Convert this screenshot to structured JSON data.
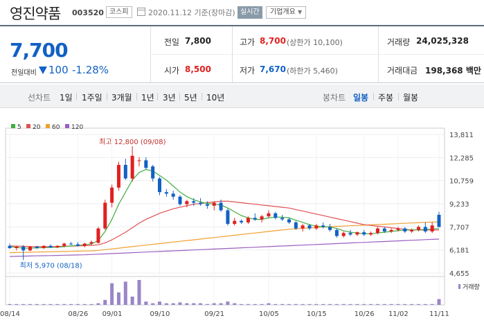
{
  "header": {
    "name": "영진약품",
    "code": "003520",
    "market": "코스피",
    "date": "2020.11.12 기준(장마감)",
    "realtime": "실시간",
    "overview": "기업개요"
  },
  "price": {
    "current": "7,700",
    "change_label": "전일대비",
    "change": "100",
    "change_pct": "-1.28%"
  },
  "stats": {
    "prev_close_label": "전일",
    "prev_close": "7,800",
    "high_label": "고가",
    "high": "8,700",
    "upper_limit": "(상한가 10,100)",
    "volume_label": "거래량",
    "volume": "24,025,328",
    "open_label": "시가",
    "open": "8,500",
    "low_label": "저가",
    "low": "7,670",
    "lower_limit": "(하한가 5,460)",
    "amount_label": "거래대금",
    "amount": "198,368 백만"
  },
  "tabs": {
    "line_chart": "선차트",
    "periods": [
      "1일",
      "1주일",
      "3개월",
      "1년",
      "3년",
      "5년",
      "10년"
    ],
    "candle_chart": "봉차트",
    "candle_periods": [
      "일봉",
      "주봉",
      "월봉"
    ],
    "active_candle": "일봉"
  },
  "colors": {
    "up": "#e02020",
    "down": "#1261c4",
    "ma5": "#3fae3f",
    "ma20": "#e05050",
    "ma60": "#f0a030",
    "ma120": "#9a5fc0",
    "volume": "#9a85c8"
  },
  "chart_data": {
    "type": "candlestick",
    "legend": [
      {
        "name": "5",
        "color": "#3fae3f"
      },
      {
        "name": "20",
        "color": "#e05050"
      },
      {
        "name": "60",
        "color": "#f0a030"
      },
      {
        "name": "120",
        "color": "#9a5fc0"
      }
    ],
    "y_ticks": [
      13811,
      12285,
      10759,
      9233,
      7707,
      6181,
      4655
    ],
    "y_tick_labels": [
      "13,811",
      "12,285",
      "10,759",
      "9,233",
      "7,707",
      "6,181",
      "4,655"
    ],
    "ylim": [
      4655,
      13811
    ],
    "x_tick_labels": [
      "08/14",
      "08/26",
      "09/01",
      "09/10",
      "09/21",
      "10/05",
      "10/15",
      "10/26",
      "11/02",
      "11/11"
    ],
    "max_annotation": "최고 12,800 (09/08)",
    "min_annotation": "최저 5,970 (08/18)",
    "volume_label": "거래량",
    "candles": [
      {
        "o": 6450,
        "h": 6600,
        "l": 6250,
        "c": 6300
      },
      {
        "o": 6300,
        "h": 6450,
        "l": 6150,
        "c": 6400
      },
      {
        "o": 6400,
        "h": 6500,
        "l": 5970,
        "c": 6150
      },
      {
        "o": 6150,
        "h": 6450,
        "l": 6100,
        "c": 6400
      },
      {
        "o": 6400,
        "h": 6450,
        "l": 6250,
        "c": 6300
      },
      {
        "o": 6300,
        "h": 6500,
        "l": 6250,
        "c": 6450
      },
      {
        "o": 6450,
        "h": 6550,
        "l": 6300,
        "c": 6350
      },
      {
        "o": 6350,
        "h": 6500,
        "l": 6300,
        "c": 6450
      },
      {
        "o": 6450,
        "h": 6650,
        "l": 6350,
        "c": 6600
      },
      {
        "o": 6600,
        "h": 6700,
        "l": 6500,
        "c": 6550
      },
      {
        "o": 6550,
        "h": 6700,
        "l": 6400,
        "c": 6450
      },
      {
        "o": 6450,
        "h": 6650,
        "l": 6350,
        "c": 6600
      },
      {
        "o": 6600,
        "h": 6800,
        "l": 6500,
        "c": 6700
      },
      {
        "o": 6650,
        "h": 7700,
        "l": 6600,
        "c": 7600
      },
      {
        "o": 7600,
        "h": 9500,
        "l": 7500,
        "c": 9300
      },
      {
        "o": 9300,
        "h": 10500,
        "l": 9000,
        "c": 10300
      },
      {
        "o": 10300,
        "h": 12000,
        "l": 10100,
        "c": 11800
      },
      {
        "o": 11800,
        "h": 12200,
        "l": 10800,
        "c": 10900
      },
      {
        "o": 10900,
        "h": 12800,
        "l": 10700,
        "c": 12400
      },
      {
        "o": 12100,
        "h": 12300,
        "l": 11700,
        "c": 12100
      },
      {
        "o": 12100,
        "h": 12300,
        "l": 11500,
        "c": 11600
      },
      {
        "o": 11700,
        "h": 11800,
        "l": 10700,
        "c": 10900
      },
      {
        "o": 10900,
        "h": 11000,
        "l": 9800,
        "c": 10000
      },
      {
        "o": 10000,
        "h": 10200,
        "l": 9700,
        "c": 9900
      },
      {
        "o": 9900,
        "h": 10100,
        "l": 9500,
        "c": 9700
      },
      {
        "o": 9700,
        "h": 9800,
        "l": 9100,
        "c": 9200
      },
      {
        "o": 9200,
        "h": 9500,
        "l": 9000,
        "c": 9400
      },
      {
        "o": 9400,
        "h": 9600,
        "l": 9100,
        "c": 9300
      },
      {
        "o": 9300,
        "h": 9600,
        "l": 9100,
        "c": 9200
      },
      {
        "o": 9200,
        "h": 9400,
        "l": 8900,
        "c": 9100
      },
      {
        "o": 9100,
        "h": 9400,
        "l": 8800,
        "c": 9300
      },
      {
        "o": 9300,
        "h": 9500,
        "l": 8700,
        "c": 8800
      },
      {
        "o": 8800,
        "h": 8900,
        "l": 7800,
        "c": 7900
      },
      {
        "o": 7900,
        "h": 8300,
        "l": 7800,
        "c": 8100
      },
      {
        "o": 8100,
        "h": 8200,
        "l": 7900,
        "c": 8000
      },
      {
        "o": 8000,
        "h": 8400,
        "l": 7900,
        "c": 8300
      },
      {
        "o": 8300,
        "h": 8600,
        "l": 8100,
        "c": 8200
      },
      {
        "o": 8200,
        "h": 8500,
        "l": 8000,
        "c": 8400
      },
      {
        "o": 8400,
        "h": 8800,
        "l": 8300,
        "c": 8600
      },
      {
        "o": 8600,
        "h": 8700,
        "l": 8200,
        "c": 8300
      },
      {
        "o": 8300,
        "h": 8500,
        "l": 8100,
        "c": 8200
      },
      {
        "o": 8200,
        "h": 8300,
        "l": 7900,
        "c": 8000
      },
      {
        "o": 8000,
        "h": 8100,
        "l": 7500,
        "c": 7600
      },
      {
        "o": 7600,
        "h": 7900,
        "l": 7400,
        "c": 7800
      },
      {
        "o": 7800,
        "h": 7900,
        "l": 7500,
        "c": 7600
      },
      {
        "o": 7600,
        "h": 7900,
        "l": 7500,
        "c": 7800
      },
      {
        "o": 7800,
        "h": 8000,
        "l": 7600,
        "c": 7700
      },
      {
        "o": 7700,
        "h": 7900,
        "l": 7400,
        "c": 7500
      },
      {
        "o": 7500,
        "h": 7600,
        "l": 7000,
        "c": 7100
      },
      {
        "o": 7100,
        "h": 7400,
        "l": 7000,
        "c": 7300
      },
      {
        "o": 7300,
        "h": 7500,
        "l": 7100,
        "c": 7200
      },
      {
        "o": 7200,
        "h": 7400,
        "l": 7100,
        "c": 7350
      },
      {
        "o": 7350,
        "h": 7500,
        "l": 7100,
        "c": 7200
      },
      {
        "o": 7200,
        "h": 7400,
        "l": 7100,
        "c": 7300
      },
      {
        "o": 7300,
        "h": 7700,
        "l": 7200,
        "c": 7600
      },
      {
        "o": 7600,
        "h": 7700,
        "l": 7300,
        "c": 7400
      },
      {
        "o": 7400,
        "h": 7600,
        "l": 7300,
        "c": 7500
      },
      {
        "o": 7500,
        "h": 7700,
        "l": 7400,
        "c": 7600
      },
      {
        "o": 7600,
        "h": 7700,
        "l": 7300,
        "c": 7400
      },
      {
        "o": 7400,
        "h": 7600,
        "l": 7300,
        "c": 7500
      },
      {
        "o": 7500,
        "h": 7800,
        "l": 7400,
        "c": 7700
      },
      {
        "o": 7700,
        "h": 8000,
        "l": 7300,
        "c": 7400
      },
      {
        "o": 7400,
        "h": 8000,
        "l": 7300,
        "c": 7800
      },
      {
        "o": 8500,
        "h": 8700,
        "l": 7670,
        "c": 7700
      }
    ],
    "ma5": [
      6400,
      6350,
      6300,
      6300,
      6320,
      6330,
      6350,
      6360,
      6400,
      6450,
      6480,
      6520,
      6580,
      6800,
      7400,
      8200,
      9200,
      10000,
      10800,
      11300,
      11500,
      11400,
      11100,
      10800,
      10400,
      10000,
      9700,
      9500,
      9350,
      9250,
      9200,
      9150,
      8950,
      8700,
      8450,
      8300,
      8200,
      8200,
      8300,
      8350,
      8350,
      8300,
      8150,
      8000,
      7850,
      7750,
      7700,
      7700,
      7600,
      7450,
      7350,
      7300,
      7250,
      7250,
      7300,
      7350,
      7400,
      7450,
      7500,
      7500,
      7500,
      7550,
      7550,
      7600
    ],
    "ma20": [
      6450,
      6430,
      6420,
      6400,
      6400,
      6400,
      6400,
      6410,
      6420,
      6430,
      6450,
      6460,
      6480,
      6520,
      6650,
      6850,
      7100,
      7350,
      7650,
      7950,
      8200,
      8400,
      8600,
      8750,
      8900,
      9000,
      9100,
      9200,
      9250,
      9300,
      9350,
      9400,
      9400,
      9350,
      9300,
      9250,
      9200,
      9150,
      9100,
      9050,
      9000,
      8950,
      8850,
      8750,
      8650,
      8550,
      8450,
      8350,
      8250,
      8150,
      8050,
      7950,
      7850,
      7800,
      7750,
      7700,
      7650,
      7600,
      7550,
      7500,
      7500,
      7500,
      7500,
      7500
    ],
    "ma60": [
      6000,
      6010,
      6020,
      6030,
      6040,
      6050,
      6060,
      6070,
      6080,
      6090,
      6100,
      6110,
      6120,
      6150,
      6200,
      6250,
      6300,
      6350,
      6400,
      6450,
      6500,
      6550,
      6600,
      6650,
      6700,
      6750,
      6800,
      6850,
      6900,
      6950,
      7000,
      7050,
      7100,
      7150,
      7200,
      7250,
      7300,
      7350,
      7400,
      7450,
      7500,
      7550,
      7580,
      7610,
      7640,
      7670,
      7700,
      7720,
      7740,
      7760,
      7780,
      7800,
      7820,
      7840,
      7860,
      7880,
      7900,
      7920,
      7940,
      7960,
      7980,
      8000,
      8020,
      8040
    ],
    "ma120": [
      5750,
      5760,
      5770,
      5780,
      5790,
      5800,
      5810,
      5820,
      5830,
      5840,
      5850,
      5860,
      5880,
      5900,
      5920,
      5940,
      5960,
      5980,
      6000,
      6020,
      6040,
      6060,
      6080,
      6100,
      6120,
      6140,
      6160,
      6180,
      6200,
      6220,
      6240,
      6260,
      6280,
      6300,
      6320,
      6340,
      6360,
      6380,
      6400,
      6420,
      6440,
      6460,
      6480,
      6500,
      6520,
      6540,
      6560,
      6580,
      6600,
      6620,
      6640,
      6660,
      6680,
      6700,
      6720,
      6740,
      6760,
      6780,
      6800,
      6820,
      6840,
      6860,
      6880,
      6900
    ],
    "volume": [
      1,
      1,
      1,
      1,
      1,
      1,
      1,
      1,
      1,
      1,
      1,
      1,
      1,
      2,
      6,
      26,
      15,
      28,
      10,
      30,
      4,
      2,
      4,
      2,
      2,
      3,
      2,
      2,
      2,
      1,
      2,
      2,
      4,
      2,
      1,
      1,
      1,
      1,
      2,
      1,
      1,
      1,
      1,
      1,
      1,
      1,
      1,
      1,
      1,
      1,
      1,
      1,
      1,
      1,
      1,
      1,
      1,
      1,
      1,
      1,
      1,
      1,
      1,
      7
    ]
  }
}
